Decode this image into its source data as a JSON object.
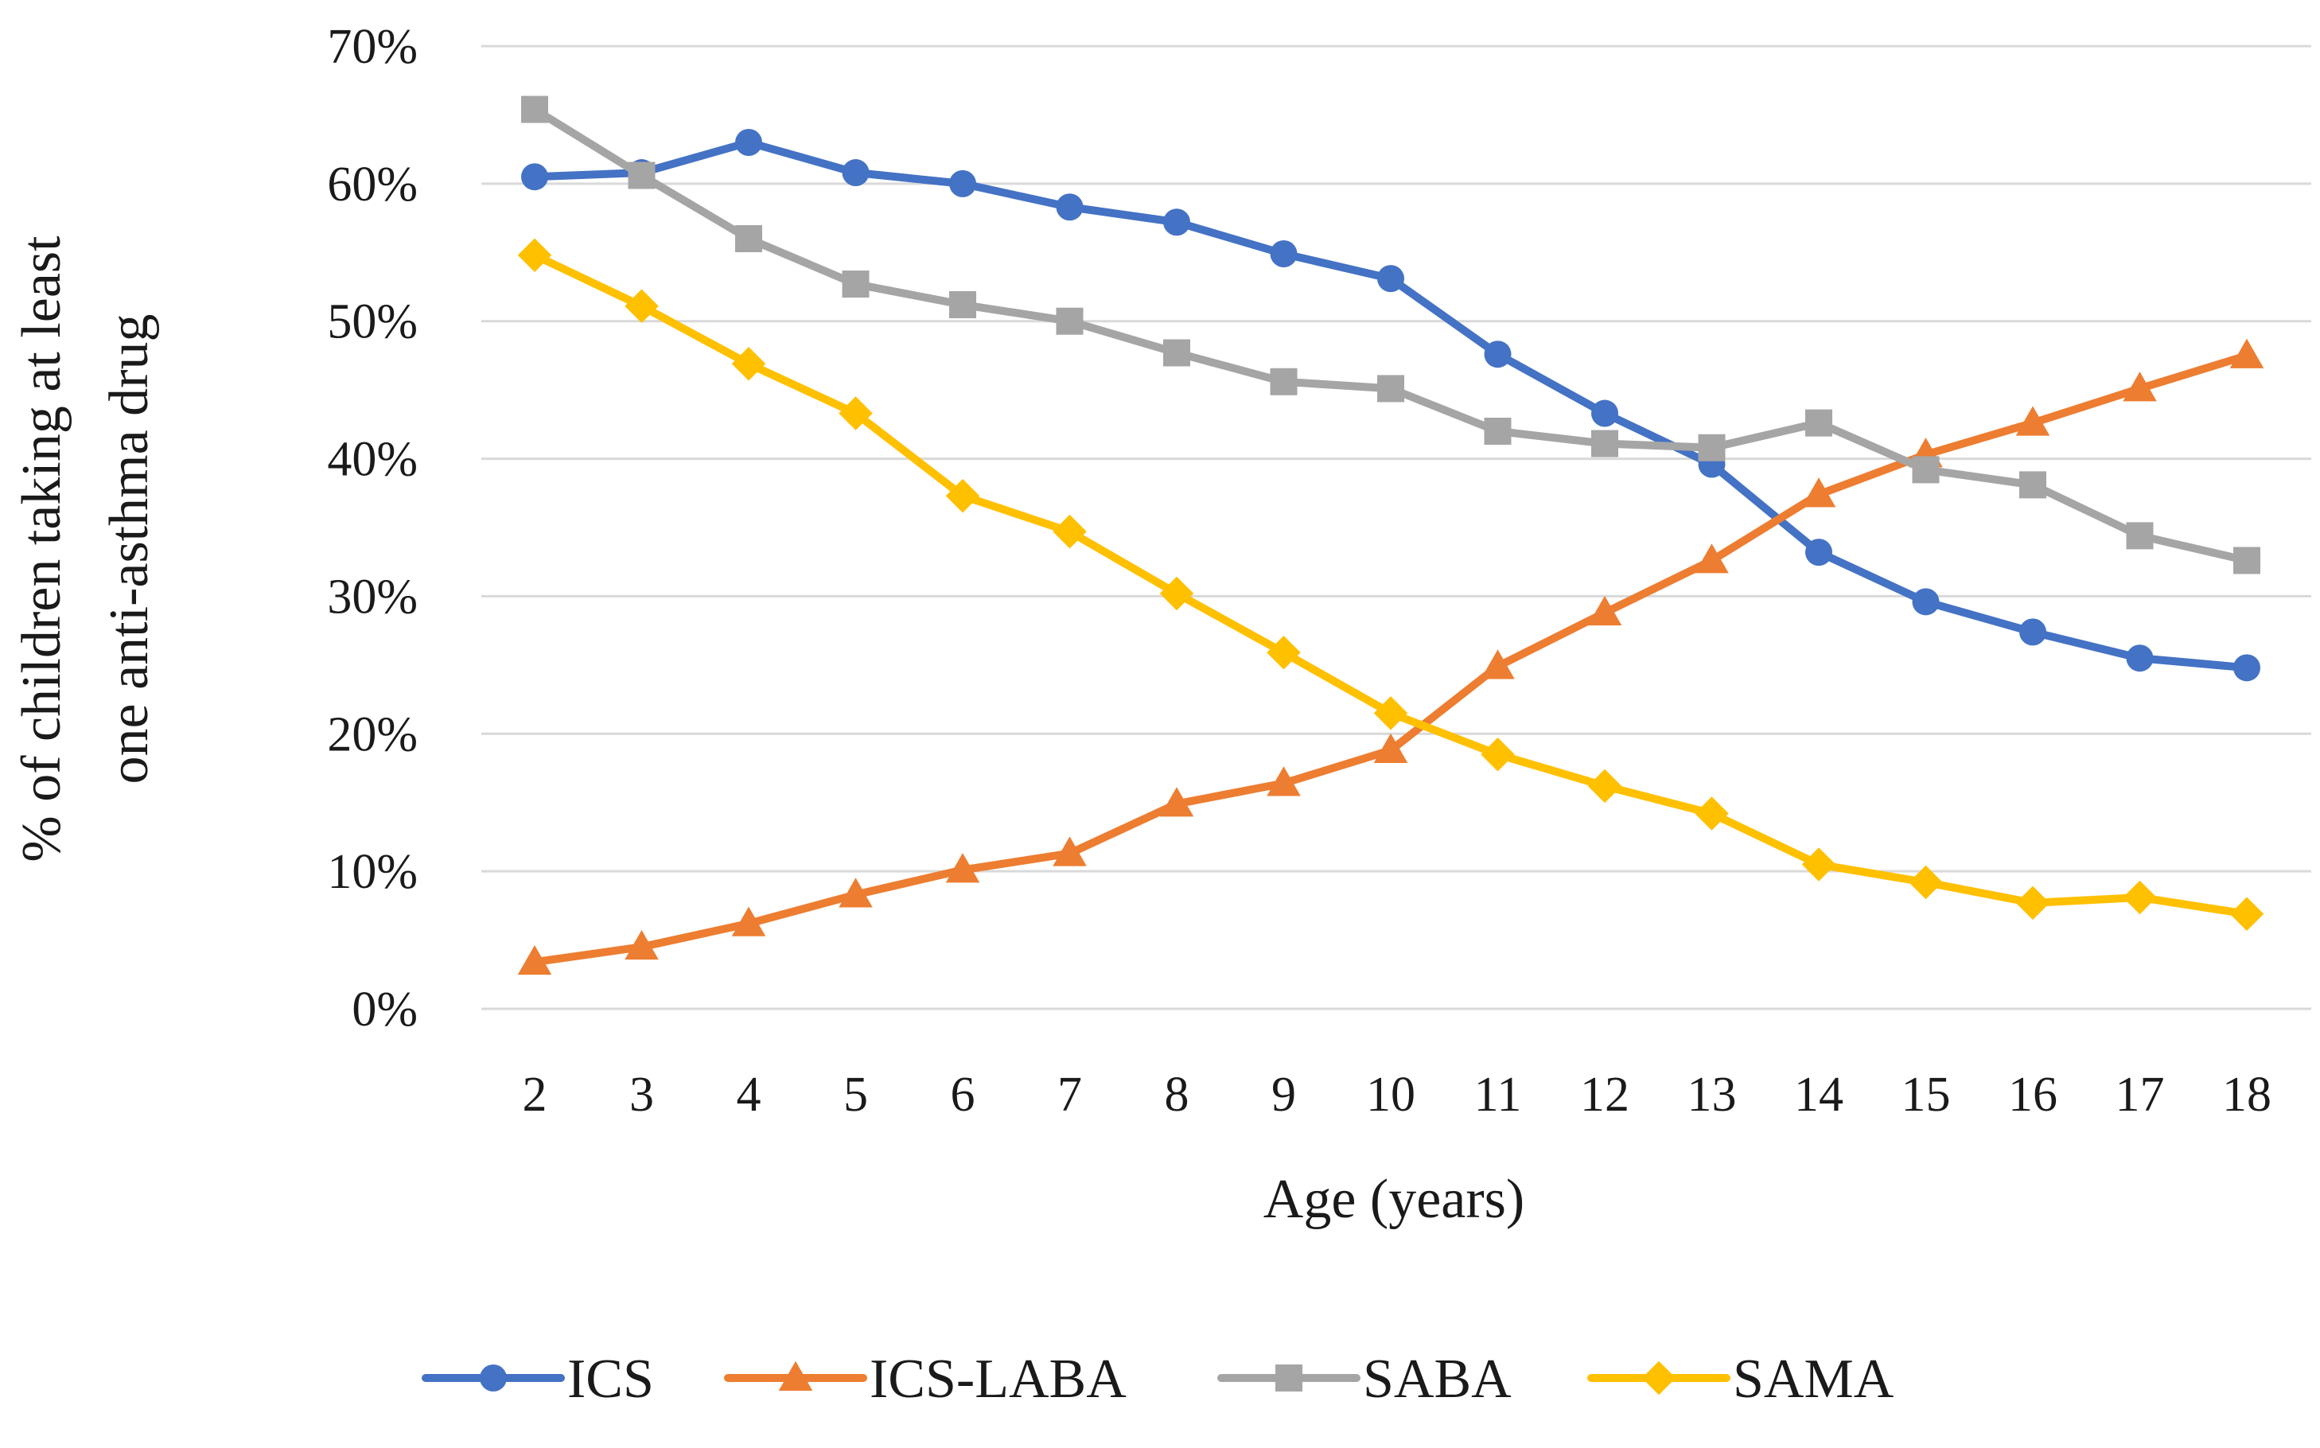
{
  "chart_data": {
    "type": "line",
    "title": "",
    "xlabel": "Age (years)",
    "ylabel": "% of children taking at least one anti-asthma drug",
    "ylabel_lines": [
      "% of children taking at least",
      "one anti-asthma drug"
    ],
    "categories": [
      "2",
      "3",
      "4",
      "5",
      "6",
      "7",
      "8",
      "9",
      "10",
      "11",
      "12",
      "13",
      "14",
      "15",
      "16",
      "17",
      "18"
    ],
    "ylim": [
      0,
      70
    ],
    "yticks": [
      0,
      10,
      20,
      30,
      40,
      50,
      60,
      70
    ],
    "ytick_labels": [
      "0%",
      "10%",
      "20%",
      "30%",
      "40%",
      "50%",
      "60%",
      "70%"
    ],
    "grid": true,
    "legend_position": "bottom",
    "series": [
      {
        "name": "ICS",
        "color": "#4472C4",
        "marker": "circle",
        "values": [
          60.5,
          60.8,
          63.0,
          60.8,
          60.0,
          58.3,
          57.2,
          54.9,
          53.1,
          47.6,
          43.3,
          39.6,
          33.2,
          29.6,
          27.4,
          25.5,
          24.8
        ]
      },
      {
        "name": "ICS-LABA",
        "color": "#ED7D31",
        "marker": "triangle",
        "values": [
          3.4,
          4.5,
          6.2,
          8.3,
          10.1,
          11.3,
          14.9,
          16.4,
          18.8,
          24.9,
          28.8,
          32.6,
          37.4,
          40.3,
          42.6,
          45.1,
          47.5
        ]
      },
      {
        "name": "SABA",
        "color": "#A5A5A5",
        "marker": "square",
        "values": [
          65.4,
          60.6,
          56.0,
          52.7,
          51.2,
          50.0,
          47.7,
          45.6,
          45.1,
          42.0,
          41.1,
          40.8,
          42.6,
          39.2,
          38.1,
          34.4,
          32.6
        ]
      },
      {
        "name": "SAMA",
        "color": "#FFC000",
        "marker": "diamond",
        "values": [
          54.8,
          51.1,
          46.9,
          43.3,
          37.3,
          34.7,
          30.2,
          25.9,
          21.5,
          18.5,
          16.2,
          14.2,
          10.5,
          9.2,
          7.7,
          8.1,
          6.9
        ]
      }
    ]
  }
}
